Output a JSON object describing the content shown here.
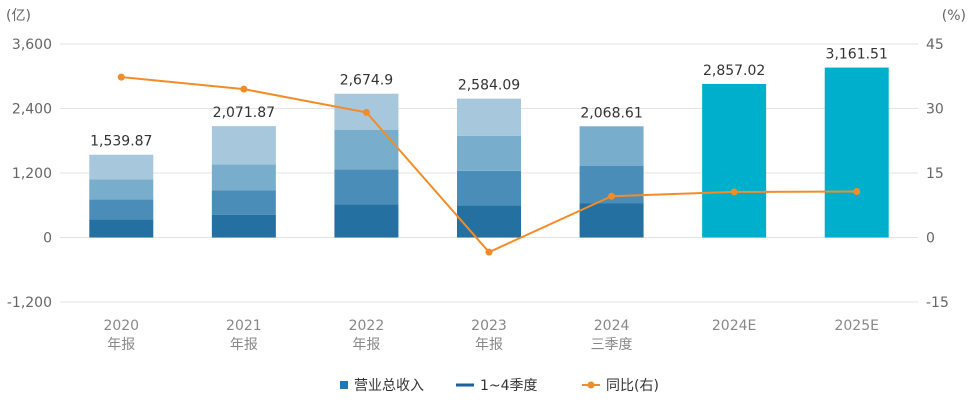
{
  "chart_data": {
    "type": "bar",
    "left_unit": "(亿)",
    "right_unit": "(%)",
    "y_left": {
      "min": -1200,
      "max": 3600,
      "ticks": [
        -1200,
        0,
        1200,
        2400,
        3600
      ],
      "tick_labels": [
        "-1,200",
        "0",
        "1,200",
        "2,400",
        "3,600"
      ]
    },
    "y_right": {
      "min": -15,
      "max": 45,
      "ticks": [
        -15,
        0,
        15,
        30,
        45
      ],
      "tick_labels": [
        "-15",
        "0",
        "15",
        "30",
        "45"
      ]
    },
    "grid": true,
    "categories": [
      {
        "line1": "2020",
        "line2": "年报"
      },
      {
        "line1": "2021",
        "line2": "年报"
      },
      {
        "line1": "2022",
        "line2": "年报"
      },
      {
        "line1": "2023",
        "line2": "年报"
      },
      {
        "line1": "2024",
        "line2": "三季度"
      },
      {
        "line1": "2024E",
        "line2": ""
      },
      {
        "line1": "2025E",
        "line2": ""
      }
    ],
    "total_revenue": [
      1539.87,
      2071.87,
      2674.9,
      2584.09,
      2068.61,
      2857.02,
      3161.51
    ],
    "total_labels": [
      "1,539.87",
      "2,071.87",
      "2,674.9",
      "2,584.09",
      "2,068.61",
      "2,857.02",
      "3,161.51"
    ],
    "quarterly_stacks": [
      [
        340,
        370,
        370,
        460
      ],
      [
        420,
        460,
        480,
        712
      ],
      [
        620,
        650,
        730,
        675
      ],
      [
        600,
        640,
        650,
        694
      ],
      [
        640,
        690,
        739,
        null
      ],
      null,
      null
    ],
    "yoy_growth": [
      37.3,
      34.5,
      29.1,
      -3.4,
      9.6,
      10.6,
      10.7
    ],
    "quarter_colors": [
      "#2470a0",
      "#4a8db8",
      "#79adcc",
      "#a7c8dc"
    ],
    "estimate_color": "#00afcb",
    "line_color": "#f28c28",
    "legend": [
      {
        "label": "营业总收入",
        "kind": "square",
        "color": "#1f77b4"
      },
      {
        "label": "1~4季度",
        "kind": "line",
        "color": "#1f5fa0"
      },
      {
        "label": "同比(右)",
        "kind": "line-dot",
        "color": "#f28c28"
      }
    ]
  }
}
